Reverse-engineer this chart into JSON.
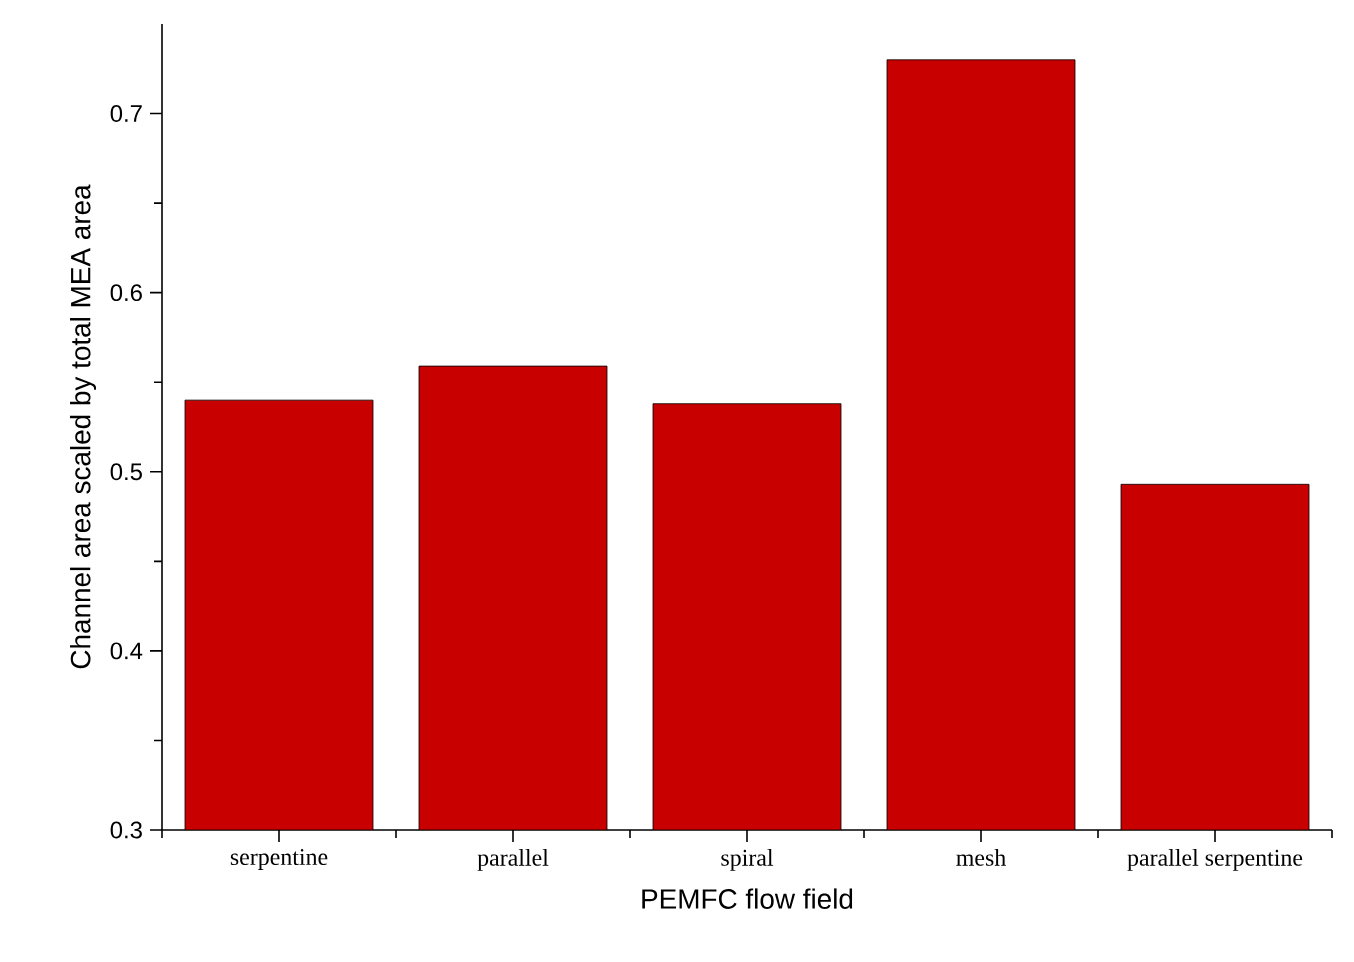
{
  "chart_data": {
    "type": "bar",
    "xlabel": "PEMFC flow field",
    "ylabel": "Channel area scaled by total MEA area",
    "categories": [
      "serpentine",
      "parallel",
      "spiral",
      "mesh",
      "parallel serpentine"
    ],
    "values": [
      0.54,
      0.559,
      0.538,
      0.73,
      0.493
    ],
    "color": "#c80000",
    "ylim": [
      0.3,
      0.75
    ],
    "yticks": [
      0.3,
      0.4,
      0.5,
      0.6,
      0.7
    ]
  }
}
